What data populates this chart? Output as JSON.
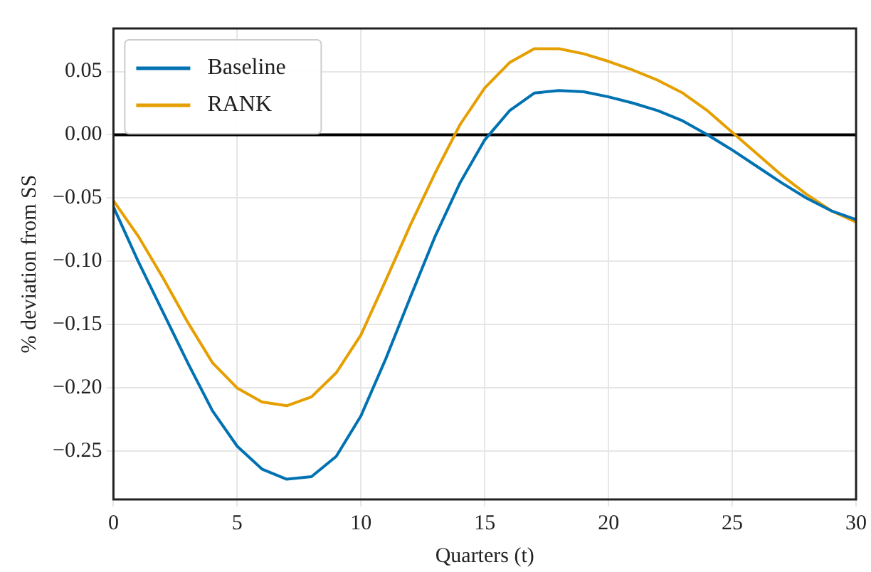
{
  "chart_data": {
    "type": "line",
    "xlabel": "Quarters (t)",
    "ylabel": "% deviation from SS",
    "x": [
      0,
      1,
      2,
      3,
      4,
      5,
      6,
      7,
      8,
      9,
      10,
      11,
      12,
      13,
      14,
      15,
      16,
      17,
      18,
      19,
      20,
      21,
      22,
      23,
      24,
      25,
      26,
      27,
      28,
      29,
      30
    ],
    "series": [
      {
        "name": "Baseline",
        "color": "#0072b2",
        "values": [
          -0.057,
          -0.1,
          -0.14,
          -0.18,
          -0.218,
          -0.246,
          -0.264,
          -0.272,
          -0.27,
          -0.254,
          -0.222,
          -0.177,
          -0.128,
          -0.08,
          -0.038,
          -0.004,
          0.019,
          0.033,
          0.035,
          0.034,
          0.03,
          0.025,
          0.019,
          0.011,
          0.0,
          -0.012,
          -0.025,
          -0.038,
          -0.05,
          -0.06,
          -0.067
        ]
      },
      {
        "name": "RANK",
        "color": "#e69f00",
        "values": [
          -0.052,
          -0.08,
          -0.113,
          -0.148,
          -0.18,
          -0.2,
          -0.211,
          -0.214,
          -0.207,
          -0.188,
          -0.158,
          -0.115,
          -0.071,
          -0.03,
          0.008,
          0.037,
          0.057,
          0.068,
          0.068,
          0.064,
          0.058,
          0.051,
          0.043,
          0.033,
          0.019,
          0.002,
          -0.015,
          -0.032,
          -0.047,
          -0.06,
          -0.069
        ]
      }
    ],
    "xlim": [
      0,
      30
    ],
    "xticks": [
      0,
      5,
      10,
      15,
      20,
      25,
      30
    ],
    "ylim": [
      -0.288,
      0.084
    ],
    "yticks": [
      {
        "value": -0.25,
        "label": "−0.25"
      },
      {
        "value": -0.2,
        "label": "−0.20"
      },
      {
        "value": -0.15,
        "label": "−0.15"
      },
      {
        "value": -0.1,
        "label": "−0.10"
      },
      {
        "value": -0.05,
        "label": "−0.05"
      },
      {
        "value": 0,
        "label": "0.00"
      },
      {
        "value": 0.05,
        "label": "0.05"
      }
    ],
    "ref_lines": [
      {
        "axis": "y",
        "value": 0,
        "color": "#000000"
      }
    ],
    "grid": true,
    "legend": "top left",
    "marker": "none",
    "line_style": "solid"
  }
}
